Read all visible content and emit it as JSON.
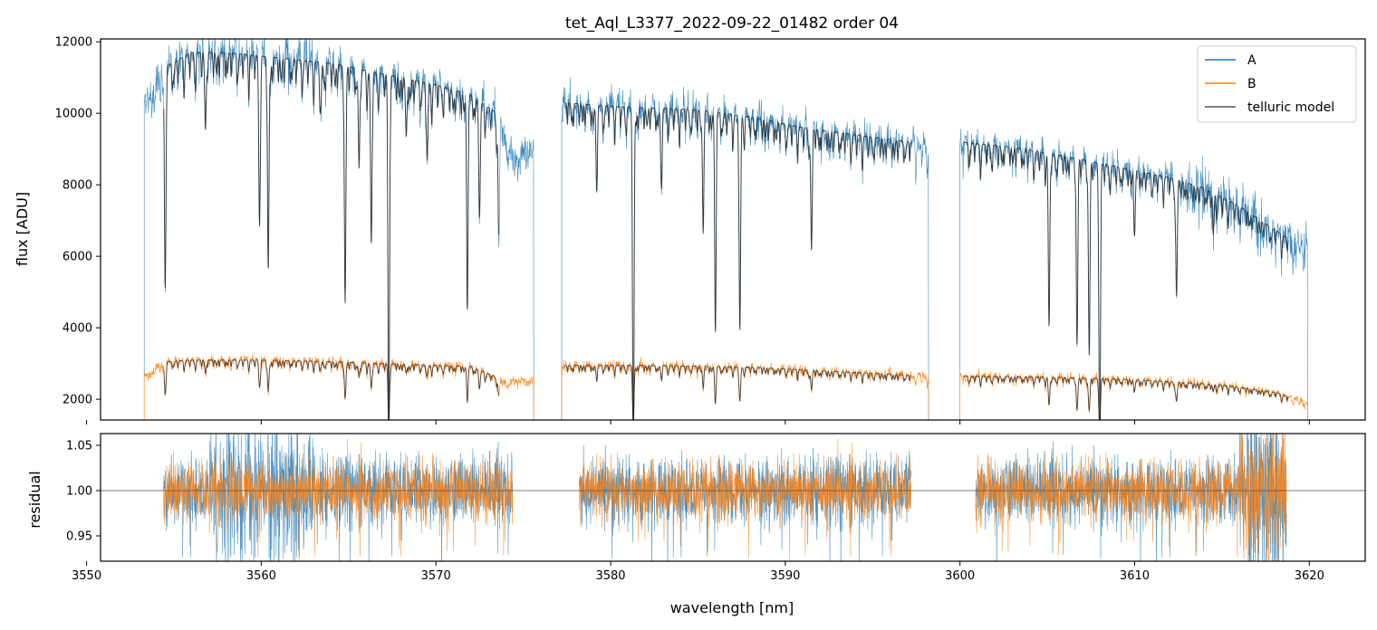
{
  "figure": {
    "title": "tet_Aql_L3377_2022-09-22_01482  order 04"
  },
  "chart_data": [
    {
      "type": "line",
      "title": "tet_Aql_L3377_2022-09-22_01482  order 04",
      "xlabel": "",
      "ylabel": "flux [ADU]",
      "xlim": [
        3550.8,
        3623.2
      ],
      "ylim": [
        1420,
        12080
      ],
      "xticks": [
        3550,
        3560,
        3570,
        3580,
        3590,
        3600,
        3610,
        3620
      ],
      "xtick_labels_visible": false,
      "yticks": [
        2000,
        4000,
        6000,
        8000,
        10000,
        12000
      ],
      "ytick_labels": [
        "2000",
        "4000",
        "6000",
        "8000",
        "10000",
        "12000"
      ],
      "grid": false,
      "legend": {
        "position": "top-right",
        "entries": [
          {
            "label": "A",
            "color": "#1f77b4"
          },
          {
            "label": "B",
            "color": "#ff7f0e"
          },
          {
            "label": "telluric model",
            "color": "#555555"
          }
        ]
      },
      "segments": [
        {
          "x_range": [
            3553.3,
            3575.6
          ],
          "model_x_range": [
            3554.4,
            3573.6
          ]
        },
        {
          "x_range": [
            3577.2,
            3598.2
          ],
          "model_x_range": [
            3577.4,
            3597.2
          ]
        },
        {
          "x_range": [
            3600.0,
            3619.9
          ],
          "model_x_range": [
            3600.2,
            3618.8
          ]
        }
      ],
      "series": [
        {
          "name": "A",
          "color": "#1f77b4",
          "continuum": [
            [
              3553.3,
              10400
            ],
            [
              3554.5,
              11300
            ],
            [
              3556,
              11700
            ],
            [
              3558,
              11700
            ],
            [
              3560,
              11600
            ],
            [
              3562,
              11500
            ],
            [
              3564,
              11400
            ],
            [
              3566,
              11200
            ],
            [
              3568,
              11000
            ],
            [
              3570,
              10800
            ],
            [
              3572,
              10500
            ],
            [
              3573.5,
              10000
            ],
            [
              3574.5,
              8800
            ],
            [
              3575.6,
              9200
            ],
            [
              3577.2,
              10300
            ],
            [
              3580,
              10200
            ],
            [
              3582,
              10150
            ],
            [
              3585,
              10100
            ],
            [
              3588,
              9900
            ],
            [
              3591,
              9600
            ],
            [
              3594,
              9400
            ],
            [
              3597,
              9200
            ],
            [
              3598.2,
              9100
            ],
            [
              3600.0,
              9200
            ],
            [
              3603,
              9050
            ],
            [
              3606,
              8800
            ],
            [
              3609,
              8500
            ],
            [
              3612,
              8200
            ],
            [
              3614,
              7900
            ],
            [
              3616,
              7400
            ],
            [
              3617.5,
              6900
            ],
            [
              3618.8,
              6500
            ],
            [
              3619.9,
              6300
            ]
          ],
          "absorption_lines": [
            {
              "x": 3554.5,
              "depth": 0.55
            },
            {
              "x": 3556.8,
              "depth": 0.15
            },
            {
              "x": 3559.9,
              "depth": 0.38
            },
            {
              "x": 3560.4,
              "depth": 0.52
            },
            {
              "x": 3563.4,
              "depth": 0.12
            },
            {
              "x": 3564.8,
              "depth": 0.57
            },
            {
              "x": 3565.6,
              "depth": 0.25
            },
            {
              "x": 3566.3,
              "depth": 0.43
            },
            {
              "x": 3567.3,
              "depth": 0.97
            },
            {
              "x": 3568.3,
              "depth": 0.15
            },
            {
              "x": 3569.5,
              "depth": 0.2
            },
            {
              "x": 3571.8,
              "depth": 0.55
            },
            {
              "x": 3572.5,
              "depth": 0.3
            },
            {
              "x": 3573.6,
              "depth": 0.35
            },
            {
              "x": 3579.2,
              "depth": 0.2
            },
            {
              "x": 3581.3,
              "depth": 0.99
            },
            {
              "x": 3582.9,
              "depth": 0.2
            },
            {
              "x": 3585.3,
              "depth": 0.3
            },
            {
              "x": 3586.0,
              "depth": 0.6
            },
            {
              "x": 3587.4,
              "depth": 0.61
            },
            {
              "x": 3591.5,
              "depth": 0.36
            },
            {
              "x": 3605.1,
              "depth": 0.55
            },
            {
              "x": 3606.7,
              "depth": 0.58
            },
            {
              "x": 3607.4,
              "depth": 0.62
            },
            {
              "x": 3608.0,
              "depth": 0.99
            },
            {
              "x": 3610.0,
              "depth": 0.2
            },
            {
              "x": 3612.4,
              "depth": 0.4
            },
            {
              "x": 3614.5,
              "depth": 0.15
            }
          ]
        },
        {
          "name": "B",
          "color": "#ff7f0e",
          "continuum": [
            [
              3553.3,
              2650
            ],
            [
              3554.5,
              3050
            ],
            [
              3556,
              3100
            ],
            [
              3560,
              3100
            ],
            [
              3564,
              3050
            ],
            [
              3568,
              2980
            ],
            [
              3572,
              2920
            ],
            [
              3574,
              2500
            ],
            [
              3575.6,
              2600
            ],
            [
              3577.2,
              2950
            ],
            [
              3582,
              2950
            ],
            [
              3588,
              2900
            ],
            [
              3594,
              2750
            ],
            [
              3598.2,
              2650
            ],
            [
              3600.0,
              2650
            ],
            [
              3605,
              2620
            ],
            [
              3610,
              2550
            ],
            [
              3615,
              2400
            ],
            [
              3618,
              2200
            ],
            [
              3619.9,
              1900
            ]
          ]
        },
        {
          "name": "telluric model",
          "color": "#555555"
        }
      ]
    },
    {
      "type": "line",
      "title": "",
      "xlabel": "wavelength [nm]",
      "ylabel": "residual",
      "xlim": [
        3550.8,
        3623.2
      ],
      "ylim": [
        0.922,
        1.063
      ],
      "xticks": [
        3550,
        3560,
        3570,
        3580,
        3590,
        3600,
        3610,
        3620
      ],
      "xtick_labels": [
        "3550",
        "3560",
        "3570",
        "3580",
        "3590",
        "3600",
        "3610",
        "3620"
      ],
      "yticks": [
        0.95,
        1.0,
        1.05
      ],
      "ytick_labels": [
        "0.95",
        "1.00",
        "1.05"
      ],
      "reference_line": 1.0,
      "grid": false,
      "segments": [
        {
          "x_range": [
            3554.4,
            3574.4
          ]
        },
        {
          "x_range": [
            3578.2,
            3597.2
          ]
        },
        {
          "x_range": [
            3600.9,
            3618.7
          ]
        }
      ],
      "series": [
        {
          "name": "A",
          "color": "#1f77b4",
          "noise_std": 0.018
        },
        {
          "name": "B",
          "color": "#ff7f0e",
          "noise_std": 0.016
        }
      ]
    }
  ]
}
